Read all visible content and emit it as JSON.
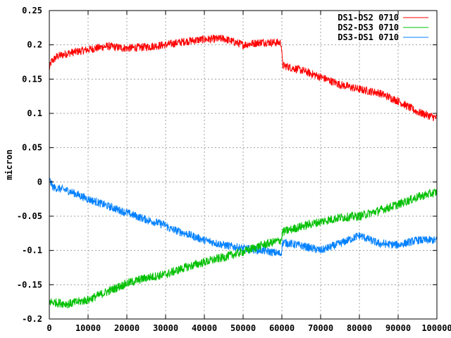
{
  "chart_data": {
    "type": "line",
    "title": "",
    "xlabel": "",
    "ylabel": "micron",
    "xlim": [
      0,
      100000
    ],
    "ylim": [
      -0.2,
      0.25
    ],
    "x_ticks": [
      0,
      10000,
      20000,
      30000,
      40000,
      50000,
      60000,
      70000,
      80000,
      90000,
      100000
    ],
    "x_tick_labels": [
      "0",
      "10000",
      "20000",
      "30000",
      "40000",
      "50000",
      "60000",
      "70000",
      "80000",
      "90000",
      "100000"
    ],
    "y_ticks": [
      -0.2,
      -0.15,
      -0.1,
      -0.05,
      0,
      0.05,
      0.1,
      0.15,
      0.2,
      0.25
    ],
    "y_tick_labels": [
      "-0.2",
      "-0.15",
      "-0.1",
      "-0.05",
      "0",
      "0.05",
      "0.1",
      "0.15",
      "0.2",
      "0.25"
    ],
    "grid": true,
    "legend_position": "top-right",
    "series": [
      {
        "name": "DS1-DS2 0710",
        "color": "#ff0000",
        "noise": 0.012,
        "x": [
          0,
          500,
          2000,
          5000,
          10000,
          15000,
          20000,
          25000,
          30000,
          35000,
          40000,
          45000,
          50000,
          55000,
          59800,
          60200,
          65000,
          70000,
          75000,
          80000,
          85000,
          90000,
          95000,
          100000
        ],
        "y": [
          0.165,
          0.175,
          0.183,
          0.188,
          0.193,
          0.198,
          0.195,
          0.197,
          0.2,
          0.205,
          0.208,
          0.209,
          0.2,
          0.204,
          0.203,
          0.17,
          0.163,
          0.153,
          0.142,
          0.135,
          0.13,
          0.118,
          0.102,
          0.093
        ]
      },
      {
        "name": "DS2-DS3 0710",
        "color": "#00c000",
        "noise": 0.013,
        "x": [
          0,
          5000,
          10000,
          15000,
          20000,
          25000,
          30000,
          35000,
          40000,
          45000,
          50000,
          55000,
          59800,
          60200,
          65000,
          70000,
          75000,
          80000,
          85000,
          90000,
          95000,
          100000
        ],
        "y": [
          -0.175,
          -0.178,
          -0.172,
          -0.16,
          -0.148,
          -0.14,
          -0.135,
          -0.125,
          -0.117,
          -0.11,
          -0.102,
          -0.092,
          -0.085,
          -0.073,
          -0.065,
          -0.058,
          -0.052,
          -0.05,
          -0.042,
          -0.033,
          -0.022,
          -0.015
        ]
      },
      {
        "name": "DS3-DS1 0710",
        "color": "#0080ff",
        "noise": 0.012,
        "x": [
          0,
          1000,
          5000,
          10000,
          15000,
          20000,
          25000,
          30000,
          31000,
          35000,
          40000,
          45000,
          50000,
          55000,
          59800,
          60200,
          65000,
          70000,
          75000,
          80000,
          85000,
          90000,
          95000,
          100000
        ],
        "y": [
          0.003,
          -0.008,
          -0.013,
          -0.025,
          -0.035,
          -0.045,
          -0.055,
          -0.063,
          -0.068,
          -0.075,
          -0.085,
          -0.092,
          -0.097,
          -0.1,
          -0.105,
          -0.088,
          -0.093,
          -0.1,
          -0.09,
          -0.078,
          -0.09,
          -0.092,
          -0.085,
          -0.085
        ]
      }
    ]
  }
}
